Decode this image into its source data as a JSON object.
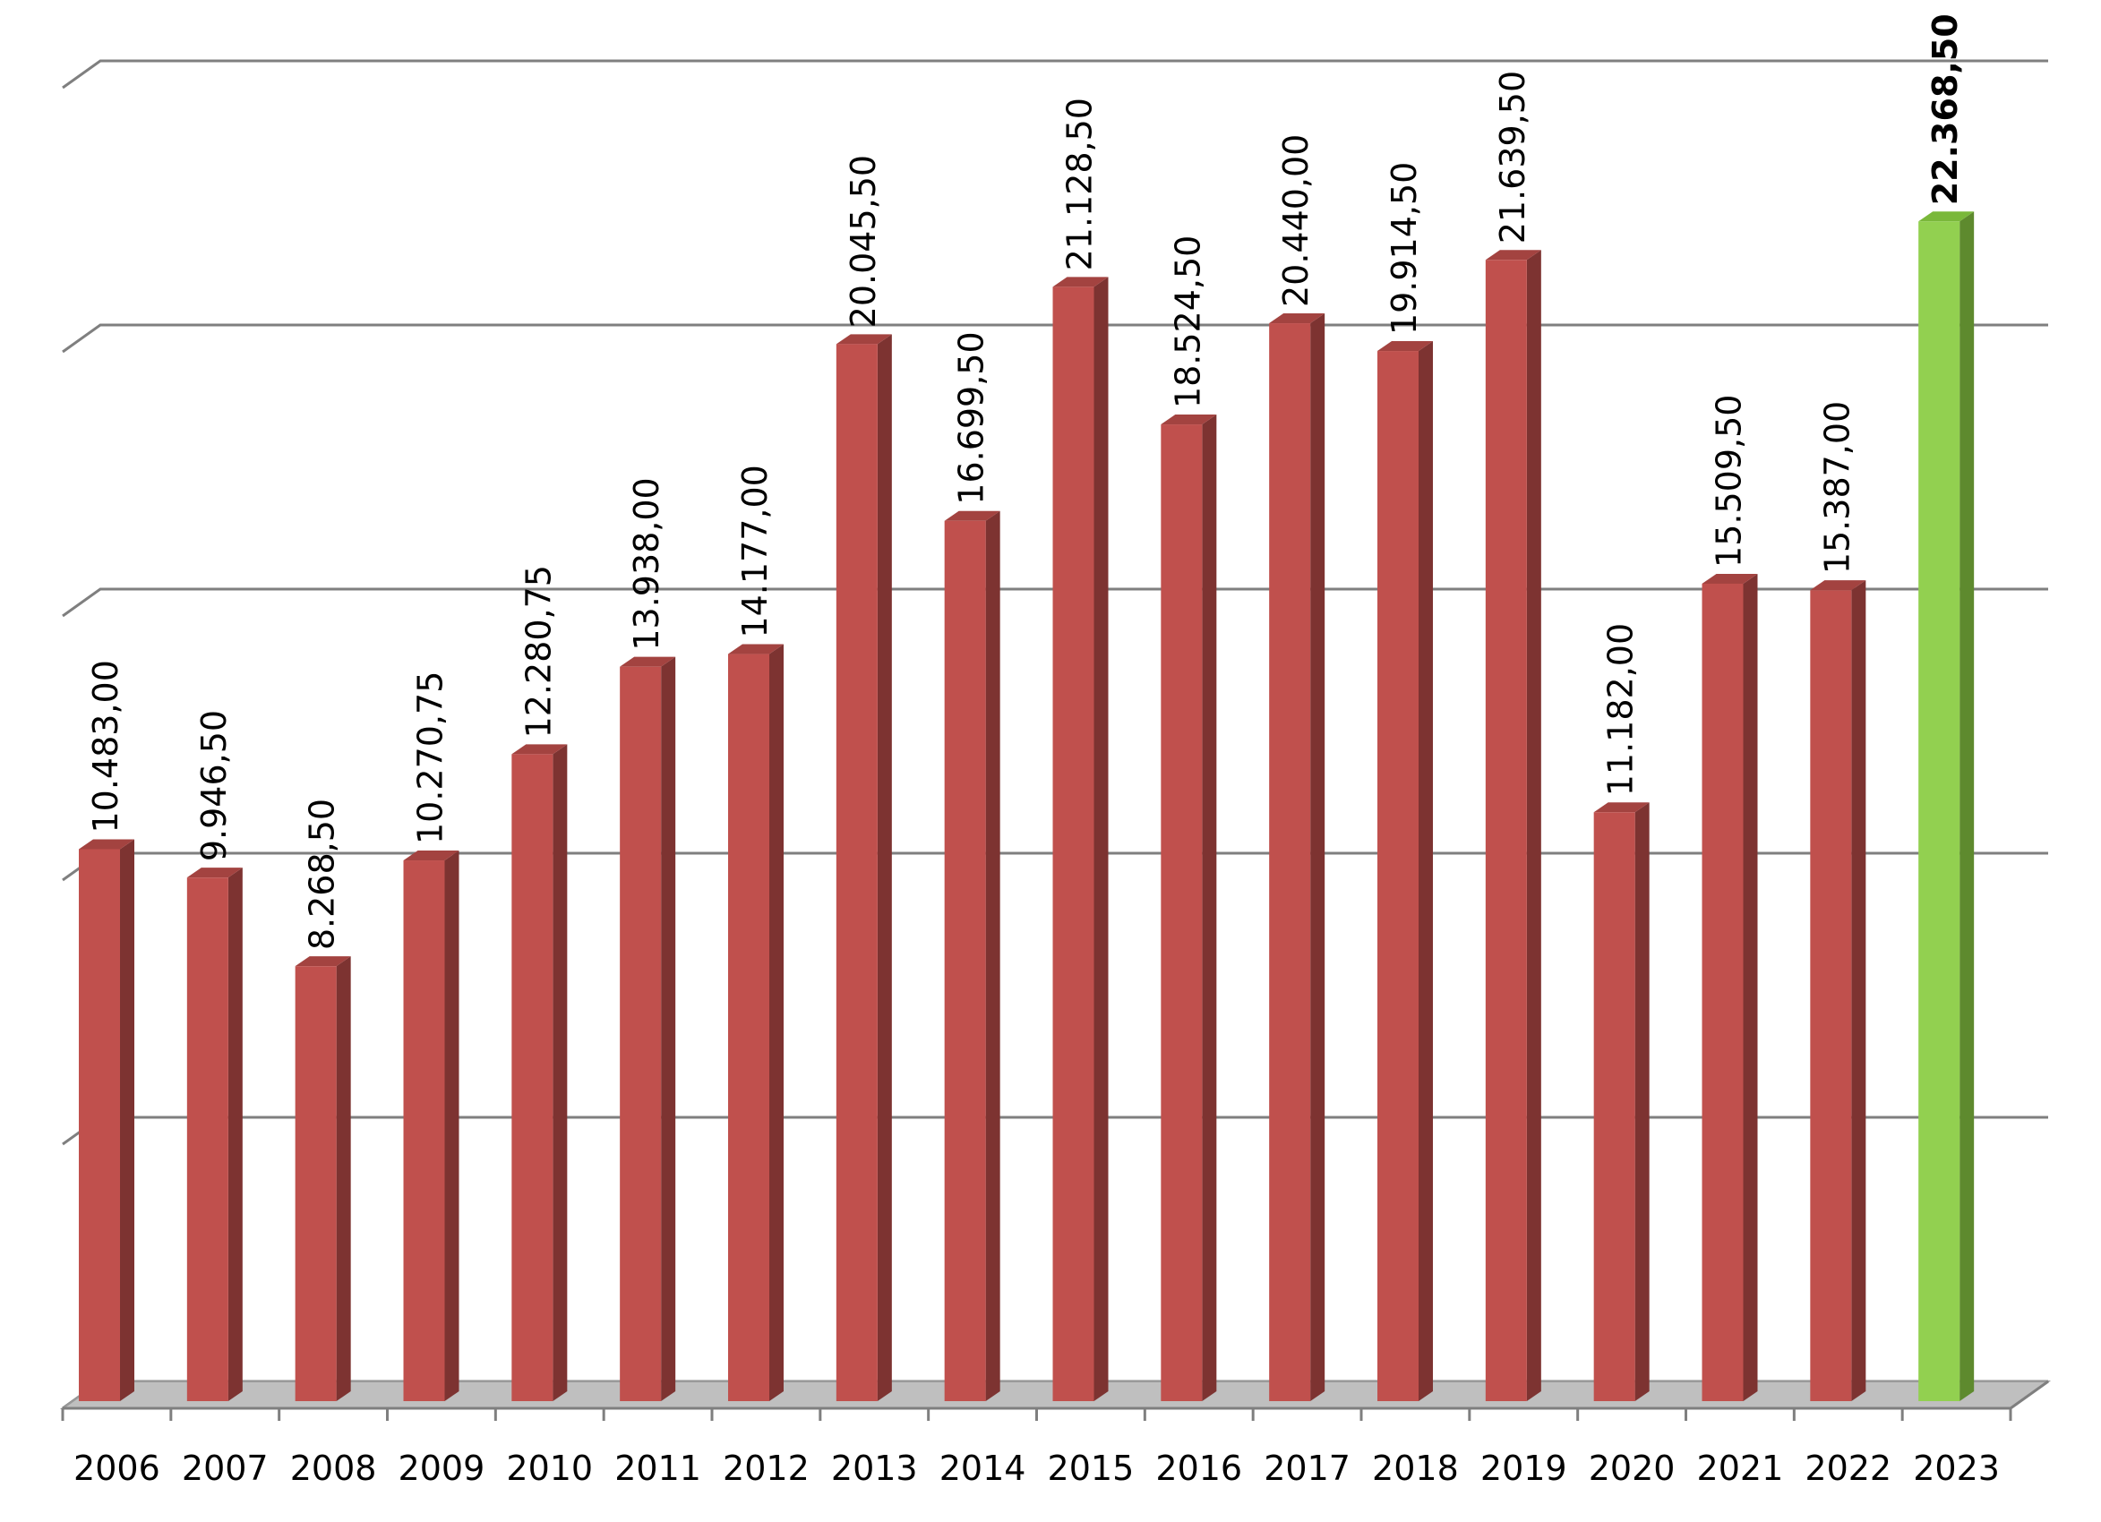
{
  "chart_data": {
    "type": "bar",
    "categories": [
      "2006",
      "2007",
      "2008",
      "2009",
      "2010",
      "2011",
      "2012",
      "2013",
      "2014",
      "2015",
      "2016",
      "2017",
      "2018",
      "2019",
      "2020",
      "2021",
      "2022",
      "2023"
    ],
    "values": [
      10483.0,
      9946.5,
      8268.5,
      10270.75,
      12280.75,
      13938.0,
      14177.0,
      20045.5,
      16699.5,
      21128.5,
      18524.5,
      20440.0,
      19914.5,
      21639.5,
      11182.0,
      15509.5,
      15387.0,
      22368.5
    ],
    "data_labels": [
      "10.483,00",
      "9.946,50",
      "8.268,50",
      "10.270,75",
      "12.280,75",
      "13.938,00",
      "14.177,00",
      "20.045,50",
      "16.699,50",
      "21.128,50",
      "18.524,50",
      "20.440,00",
      "19.914,50",
      "21.639,50",
      "11.182,00",
      "15.509,50",
      "15.387,00",
      "22.368,50"
    ],
    "highlight_index": 17,
    "ylim": [
      0,
      25000
    ],
    "gridlines": [
      0,
      5000,
      10000,
      15000,
      20000,
      25000
    ],
    "y_tick_labels_visible": false,
    "grid": true,
    "legend": "none",
    "style": "3d-column",
    "colors": {
      "bar": "#c0504d",
      "bar_side": "#7d3331",
      "bar_top": "#a34340",
      "highlight": "#92d050",
      "highlight_side": "#5e8a2e",
      "highlight_top": "#7ab83a",
      "grid": "#7f7f7f",
      "floor": "#bfbfbf"
    }
  }
}
